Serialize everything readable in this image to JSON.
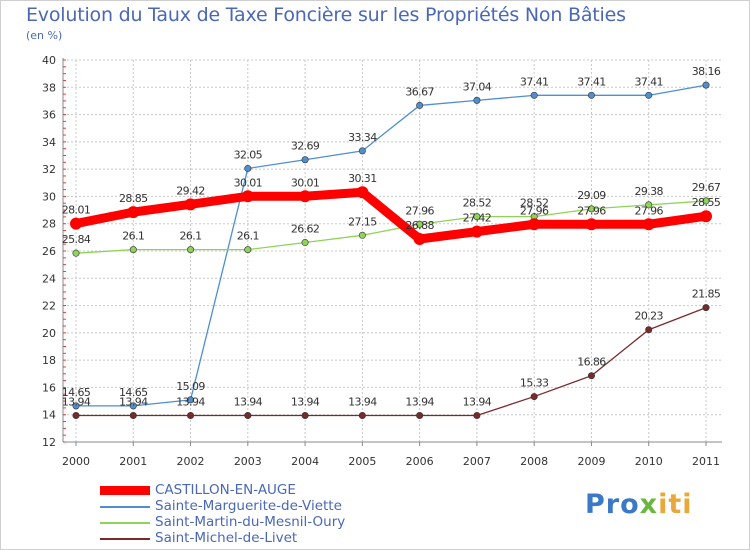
{
  "title": "Evolution du Taux de Taxe Foncière sur les Propriétés Non Bâties",
  "unit_label": "(en %)",
  "brand": {
    "part1": "Pro",
    "part2": "x",
    "part3": "iti"
  },
  "chart_data": {
    "type": "line",
    "title": "Evolution du Taux de Taxe Foncière sur les Propriétés Non Bâties",
    "ylabel": "(en %)",
    "xlabel": "",
    "ylim": [
      12,
      40
    ],
    "yticks": [
      12,
      14,
      16,
      18,
      20,
      22,
      24,
      26,
      28,
      30,
      32,
      34,
      36,
      38,
      40
    ],
    "categories": [
      "2000",
      "2001",
      "2002",
      "2003",
      "2004",
      "2005",
      "2006",
      "2007",
      "2008",
      "2009",
      "2010",
      "2011"
    ],
    "grid": true,
    "legend_position": "bottom-left",
    "series": [
      {
        "name": "CASTILLON-EN-AUGE",
        "color": "#ff0000",
        "values": [
          28.01,
          28.85,
          29.42,
          30.01,
          30.01,
          30.31,
          26.88,
          27.42,
          27.96,
          27.96,
          27.96,
          28.55
        ],
        "labels": [
          "28.01",
          "28.85",
          "29.42",
          "30.01",
          "30.01",
          "30.31",
          "26.88",
          "27.42",
          "27.96",
          "27.96",
          "27.96",
          "28.55"
        ]
      },
      {
        "name": "Sainte-Marguerite-de-Viette",
        "color": "#4f8fcf",
        "values": [
          14.65,
          14.65,
          15.09,
          32.05,
          32.69,
          33.34,
          36.67,
          37.04,
          37.41,
          37.41,
          37.41,
          38.16
        ],
        "labels": [
          "14.65",
          "14.65",
          "15.09",
          "32.05",
          "32.69",
          "33.34",
          "36.67",
          "37.04",
          "37.41",
          "37.41",
          "37.41",
          "38.16"
        ]
      },
      {
        "name": "Saint-Martin-du-Mesnil-Oury",
        "color": "#8fd35a",
        "values": [
          25.84,
          26.1,
          26.1,
          26.1,
          26.62,
          27.15,
          27.96,
          28.52,
          28.52,
          29.09,
          29.38,
          29.67
        ],
        "labels": [
          "25.84",
          "26.1",
          "26.1",
          "26.1",
          "26.62",
          "27.15",
          "27.96",
          "28.52",
          "28.52",
          "29.09",
          "29.38",
          "29.67"
        ]
      },
      {
        "name": "Saint-Michel-de-Livet",
        "color": "#7a2a2a",
        "values": [
          13.94,
          13.94,
          13.94,
          13.94,
          13.94,
          13.94,
          13.94,
          13.94,
          15.33,
          16.86,
          20.23,
          21.85
        ],
        "labels": [
          "13.94",
          "13.94",
          "13.94",
          "13.94",
          "13.94",
          "13.94",
          "13.94",
          "13.94",
          "15.33",
          "16.86",
          "20.23",
          "21.85"
        ]
      }
    ]
  }
}
